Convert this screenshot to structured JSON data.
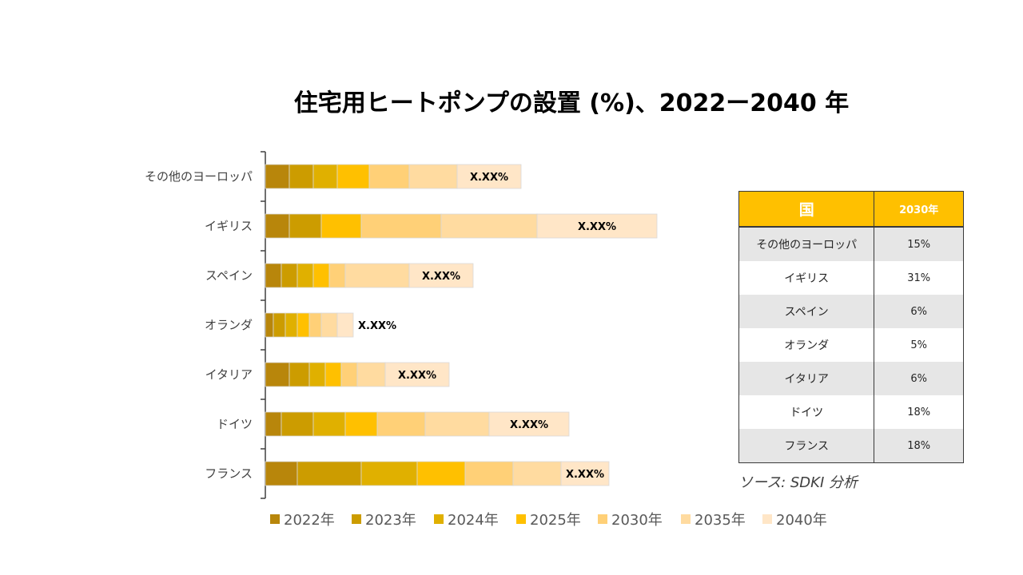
{
  "title": "住宅用ヒートポンプの設置 (%)、2022ー2040 年",
  "chart_data": {
    "type": "bar",
    "orientation": "horizontal",
    "stacked": true,
    "categories": [
      "その他のヨーロッパ",
      "イギリス",
      "スペイン",
      "オランダ",
      "イタリア",
      "ドイツ",
      "フランス"
    ],
    "series": [
      {
        "name": "2022年",
        "color": "#b8860b",
        "values": [
          3,
          3,
          2,
          1,
          3,
          2,
          4
        ]
      },
      {
        "name": "2023年",
        "color": "#cc9c00",
        "values": [
          3,
          4,
          2,
          1.5,
          2.5,
          4,
          8
        ]
      },
      {
        "name": "2024年",
        "color": "#e0b000",
        "values": [
          3,
          0,
          2,
          1.5,
          2,
          4,
          7
        ]
      },
      {
        "name": "2025年",
        "color": "#ffc000",
        "values": [
          4,
          5,
          2,
          1.5,
          2,
          4,
          6
        ]
      },
      {
        "name": "2030年",
        "color": "#ffd077",
        "values": [
          5,
          10,
          2,
          1.5,
          2,
          6,
          6
        ]
      },
      {
        "name": "2035年",
        "color": "#ffdba0",
        "values": [
          6,
          12,
          8,
          2,
          3.5,
          8,
          6
        ]
      },
      {
        "name": "2040年",
        "color": "#ffe6c7",
        "values": [
          8,
          15,
          8,
          2,
          8,
          10,
          6
        ]
      }
    ],
    "data_labels": [
      "X.XX%",
      "X.XX%",
      "X.XX%",
      "X.XX%",
      "X.XX%",
      "X.XX%",
      "X.XX%"
    ],
    "xlim": [
      0,
      60
    ],
    "legend_position": "bottom"
  },
  "table": {
    "headers": [
      "国",
      "2030年"
    ],
    "rows": [
      [
        "その他のヨーロッパ",
        "15%"
      ],
      [
        "イギリス",
        "31%"
      ],
      [
        "スペイン",
        "6%"
      ],
      [
        "オランダ",
        "5%"
      ],
      [
        "イタリア",
        "6%"
      ],
      [
        "ドイツ",
        "18%"
      ],
      [
        "フランス",
        "18%"
      ]
    ]
  },
  "source": "ソース: SDKI 分析"
}
